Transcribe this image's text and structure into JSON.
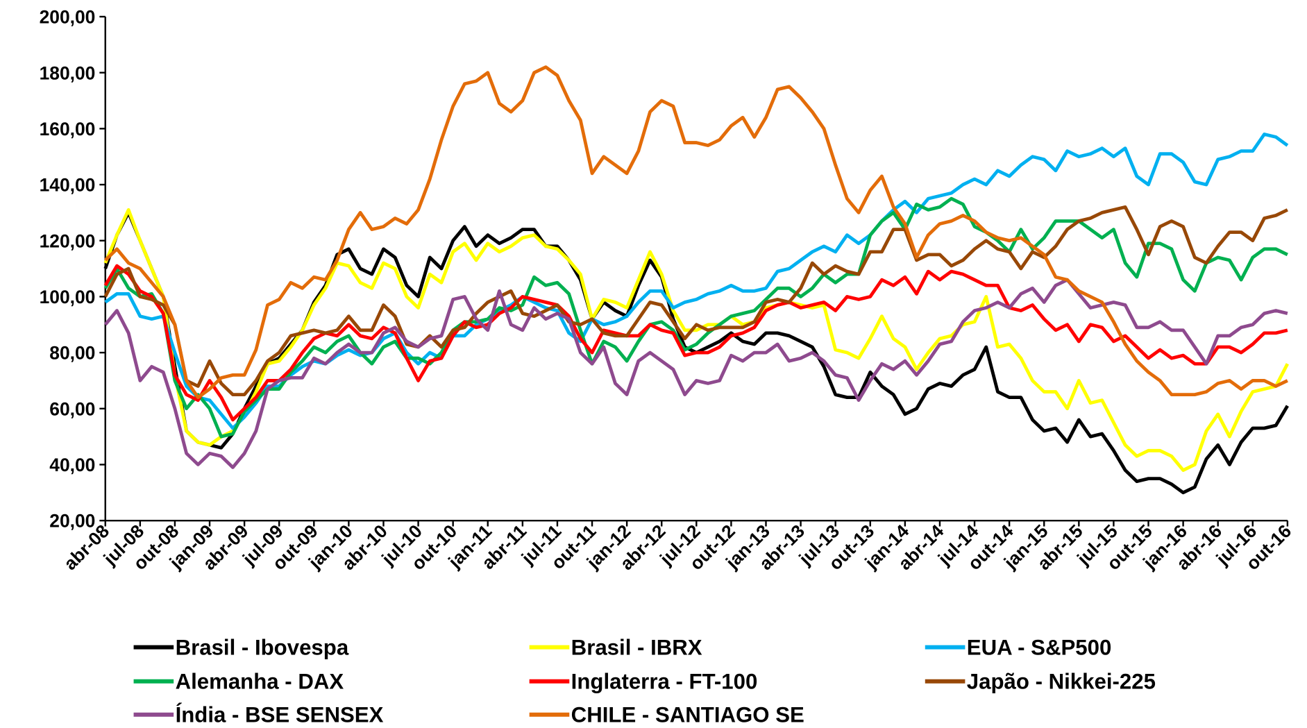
{
  "chart_data": {
    "type": "line",
    "categories": [
      "abr-08",
      null,
      null,
      "jul-08",
      null,
      null,
      "out-08",
      null,
      null,
      "jan-09",
      null,
      null,
      "abr-09",
      null,
      null,
      "jul-09",
      null,
      null,
      "out-09",
      null,
      null,
      "jan-10",
      null,
      null,
      "abr-10",
      null,
      null,
      "jul-10",
      null,
      null,
      "out-10",
      null,
      null,
      "jan-11",
      null,
      null,
      "abr-11",
      null,
      null,
      "jul-11",
      null,
      null,
      "out-11",
      null,
      null,
      "jan-12",
      null,
      null,
      "abr-12",
      null,
      null,
      "jul-12",
      null,
      null,
      "out-12",
      null,
      null,
      "jan-13",
      null,
      null,
      "abr-13",
      null,
      null,
      "jul-13",
      null,
      null,
      "out-13",
      null,
      null,
      "jan-14",
      null,
      null,
      "abr-14",
      null,
      null,
      "jul-14",
      null,
      null,
      "out-14",
      null,
      null,
      "jan-15",
      null,
      null,
      "abr-15",
      null,
      null,
      "jul-15",
      null,
      null,
      "out-15",
      null,
      null,
      "jan-16",
      null,
      null,
      "abr-16",
      null,
      null,
      "jul-16",
      null,
      null,
      "out-16"
    ],
    "ylim": [
      20,
      200
    ],
    "yticks": [
      {
        "value": 20,
        "label": "20,00"
      },
      {
        "value": 40,
        "label": "40,00"
      },
      {
        "value": 60,
        "label": "60,00"
      },
      {
        "value": 80,
        "label": "80,00"
      },
      {
        "value": 100,
        "label": "100,00"
      },
      {
        "value": 120,
        "label": "120,00"
      },
      {
        "value": 140,
        "label": "140,00"
      },
      {
        "value": 160,
        "label": "160,00"
      },
      {
        "value": 180,
        "label": "180,00"
      },
      {
        "value": 200,
        "label": "200,00"
      }
    ],
    "series": [
      {
        "name": "Brasil - Ibovespa",
        "color": "#000000",
        "values": [
          110,
          122,
          130,
          120,
          110,
          100,
          75,
          52,
          48,
          47,
          46,
          51,
          60,
          68,
          76,
          78,
          83,
          88,
          98,
          104,
          115,
          117,
          110,
          108,
          117,
          114,
          104,
          100,
          114,
          110,
          120,
          125,
          118,
          122,
          119,
          121,
          124,
          124,
          118,
          118,
          113,
          106,
          92,
          98,
          95,
          93,
          104,
          113,
          107,
          92,
          82,
          80,
          82,
          84,
          87,
          84,
          83,
          87,
          87,
          86,
          84,
          82,
          75,
          65,
          64,
          64,
          73,
          68,
          65,
          58,
          60,
          67,
          69,
          68,
          72,
          74,
          82,
          66,
          64,
          64,
          56,
          52,
          53,
          48,
          56,
          50,
          51,
          45,
          38,
          34,
          35,
          35,
          33,
          30,
          32,
          42,
          47,
          40,
          48,
          53,
          53,
          54,
          61
        ]
      },
      {
        "name": "Brasil - IBRX",
        "color": "#ffff00",
        "values": [
          112,
          122,
          131,
          120,
          110,
          100,
          72,
          52,
          48,
          47,
          50,
          52,
          58,
          66,
          76,
          77,
          82,
          88,
          97,
          103,
          112,
          111,
          105,
          103,
          112,
          110,
          100,
          96,
          108,
          105,
          116,
          119,
          113,
          119,
          116,
          118,
          121,
          122,
          118,
          117,
          113,
          108,
          92,
          99,
          98,
          96,
          106,
          116,
          108,
          95,
          88,
          88,
          90,
          90,
          93,
          90,
          91,
          96,
          97,
          98,
          97,
          96,
          97,
          81,
          80,
          78,
          85,
          93,
          85,
          82,
          74,
          80,
          85,
          86,
          90,
          91,
          100,
          82,
          83,
          78,
          70,
          66,
          66,
          60,
          70,
          62,
          63,
          55,
          47,
          43,
          45,
          45,
          43,
          38,
          40,
          52,
          58,
          50,
          59,
          66,
          67,
          68,
          76
        ]
      },
      {
        "name": "EUA - S&P500",
        "color": "#00b0f0",
        "values": [
          98,
          101,
          101,
          93,
          92,
          93,
          80,
          68,
          64,
          63,
          58,
          53,
          57,
          62,
          68,
          68,
          72,
          75,
          77,
          76,
          79,
          81,
          79,
          80,
          85,
          87,
          80,
          76,
          80,
          78,
          86,
          86,
          90,
          92,
          95,
          97,
          100,
          98,
          96,
          95,
          87,
          84,
          92,
          90,
          91,
          93,
          98,
          102,
          102,
          96,
          98,
          99,
          101,
          102,
          104,
          102,
          102,
          103,
          109,
          110,
          113,
          116,
          118,
          116,
          122,
          119,
          122,
          127,
          131,
          134,
          130,
          135,
          136,
          137,
          140,
          142,
          140,
          145,
          143,
          147,
          150,
          149,
          145,
          152,
          150,
          151,
          153,
          150,
          153,
          143,
          140,
          151,
          151,
          148,
          141,
          140,
          149,
          150,
          152,
          152,
          158,
          157,
          154
        ]
      },
      {
        "name": "Alemanha - DAX",
        "color": "#00b050",
        "values": [
          103,
          110,
          103,
          100,
          101,
          94,
          70,
          60,
          65,
          60,
          50,
          51,
          59,
          63,
          67,
          67,
          73,
          77,
          82,
          80,
          84,
          86,
          80,
          76,
          82,
          84,
          78,
          78,
          76,
          80,
          88,
          91,
          91,
          92,
          96,
          95,
          97,
          107,
          104,
          105,
          101,
          88,
          76,
          84,
          82,
          77,
          84,
          90,
          91,
          88,
          81,
          83,
          87,
          90,
          93,
          94,
          95,
          99,
          103,
          103,
          100,
          103,
          108,
          105,
          108,
          108,
          122,
          127,
          130,
          124,
          133,
          131,
          132,
          135,
          133,
          125,
          123,
          120,
          116,
          124,
          117,
          121,
          127,
          127,
          127,
          124,
          121,
          124,
          112,
          107,
          119,
          119,
          117,
          106,
          102,
          112,
          114,
          113,
          106,
          114,
          117,
          117,
          115
        ]
      },
      {
        "name": "Inglaterra - FT-100",
        "color": "#ff0000",
        "values": [
          104,
          111,
          108,
          102,
          100,
          94,
          72,
          65,
          63,
          70,
          64,
          56,
          60,
          64,
          70,
          70,
          74,
          80,
          85,
          87,
          86,
          90,
          86,
          85,
          89,
          87,
          78,
          70,
          77,
          78,
          86,
          91,
          89,
          90,
          94,
          96,
          100,
          99,
          98,
          97,
          93,
          85,
          80,
          88,
          87,
          86,
          86,
          90,
          88,
          87,
          79,
          80,
          80,
          82,
          86,
          87,
          89,
          95,
          97,
          98,
          96,
          97,
          98,
          95,
          100,
          99,
          100,
          106,
          104,
          107,
          101,
          109,
          106,
          109,
          108,
          106,
          104,
          104,
          96,
          95,
          97,
          92,
          88,
          90,
          84,
          90,
          89,
          84,
          86,
          82,
          78,
          81,
          78,
          79,
          76,
          76,
          82,
          82,
          80,
          83,
          87,
          87,
          88
        ]
      },
      {
        "name": "Japão - Nikkei-225",
        "color": "#984807",
        "values": [
          100,
          108,
          110,
          100,
          99,
          97,
          90,
          70,
          68,
          77,
          69,
          65,
          65,
          70,
          77,
          80,
          86,
          87,
          88,
          87,
          88,
          93,
          88,
          88,
          97,
          93,
          83,
          82,
          86,
          82,
          88,
          89,
          94,
          98,
          100,
          102,
          94,
          93,
          95,
          97,
          91,
          90,
          92,
          87,
          86,
          86,
          92,
          98,
          97,
          91,
          85,
          90,
          88,
          89,
          89,
          89,
          91,
          98,
          99,
          98,
          103,
          112,
          108,
          111,
          109,
          108,
          116,
          116,
          124,
          124,
          113,
          115,
          115,
          111,
          113,
          117,
          120,
          117,
          116,
          110,
          116,
          114,
          118,
          124,
          127,
          128,
          130,
          131,
          132,
          124,
          115,
          125,
          127,
          125,
          114,
          112,
          118,
          123,
          123,
          120,
          128,
          129,
          131
        ]
      },
      {
        "name": "Índia - BSE SENSEX",
        "color": "#8e4a8e",
        "values": [
          90,
          95,
          87,
          70,
          75,
          73,
          60,
          44,
          40,
          44,
          43,
          39,
          44,
          52,
          67,
          70,
          71,
          71,
          78,
          76,
          80,
          83,
          80,
          80,
          87,
          89,
          84,
          82,
          85,
          86,
          99,
          100,
          92,
          88,
          102,
          90,
          88,
          96,
          92,
          94,
          92,
          80,
          76,
          82,
          69,
          65,
          77,
          80,
          77,
          74,
          65,
          70,
          69,
          70,
          79,
          77,
          80,
          80,
          83,
          77,
          78,
          80,
          77,
          72,
          71,
          63,
          70,
          76,
          74,
          77,
          72,
          77,
          83,
          84,
          91,
          95,
          96,
          98,
          96,
          101,
          103,
          98,
          104,
          106,
          101,
          96,
          97,
          98,
          97,
          89,
          89,
          91,
          88,
          88,
          82,
          76,
          86,
          86,
          89,
          90,
          94,
          95,
          94
        ]
      },
      {
        "name": "CHILE - SANTIAGO SE",
        "color": "#e36c09",
        "values": [
          113,
          117,
          112,
          110,
          105,
          100,
          90,
          70,
          64,
          67,
          71,
          72,
          72,
          81,
          97,
          99,
          105,
          103,
          107,
          106,
          113,
          124,
          130,
          124,
          125,
          128,
          126,
          131,
          142,
          156,
          168,
          176,
          177,
          180,
          169,
          166,
          170,
          180,
          182,
          179,
          170,
          163,
          144,
          150,
          147,
          144,
          152,
          166,
          170,
          168,
          155,
          155,
          154,
          156,
          161,
          164,
          157,
          164,
          174,
          175,
          171,
          166,
          160,
          147,
          135,
          130,
          138,
          143,
          132,
          126,
          114,
          122,
          126,
          127,
          129,
          127,
          123,
          121,
          120,
          121,
          118,
          115,
          107,
          106,
          102,
          100,
          98,
          91,
          83,
          77,
          73,
          70,
          65,
          65,
          65,
          66,
          69,
          70,
          67,
          70,
          70,
          68,
          70
        ]
      }
    ]
  }
}
